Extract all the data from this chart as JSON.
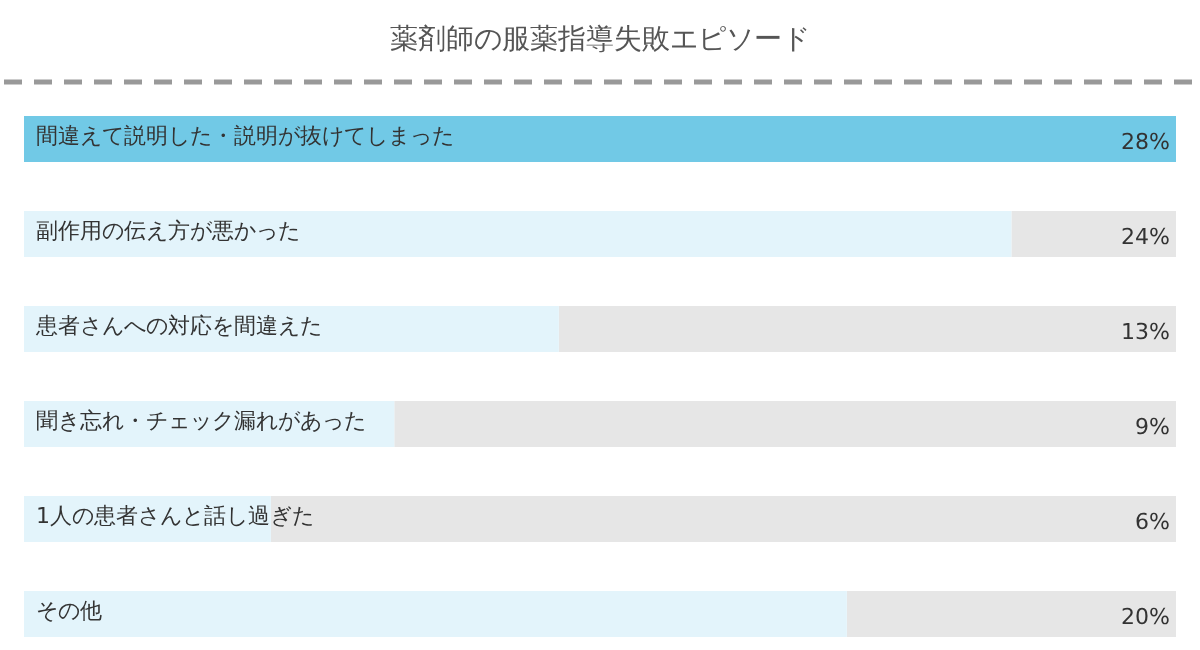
{
  "chart_data": {
    "type": "bar",
    "orientation": "horizontal",
    "title": "薬剤師の服薬指導失敗エピソード",
    "categories": [
      "間違えて説明した・説明が抜けてしまった",
      "副作用の伝え方が悪かった",
      "患者さんへの対応を間違えた",
      "聞き忘れ・チェック漏れがあった",
      "1人の患者さんと話し過ぎた",
      "その他"
    ],
    "values": [
      28,
      24,
      13,
      9,
      6,
      20
    ],
    "colors": [
      "#71c9e6",
      "#e3f4fb",
      "#e3f4fb",
      "#e3f4fb",
      "#e3f4fb",
      "#e3f4fb"
    ],
    "value_labels": [
      "28%",
      "24%",
      "13%",
      "9%",
      "6%",
      "20%"
    ]
  }
}
